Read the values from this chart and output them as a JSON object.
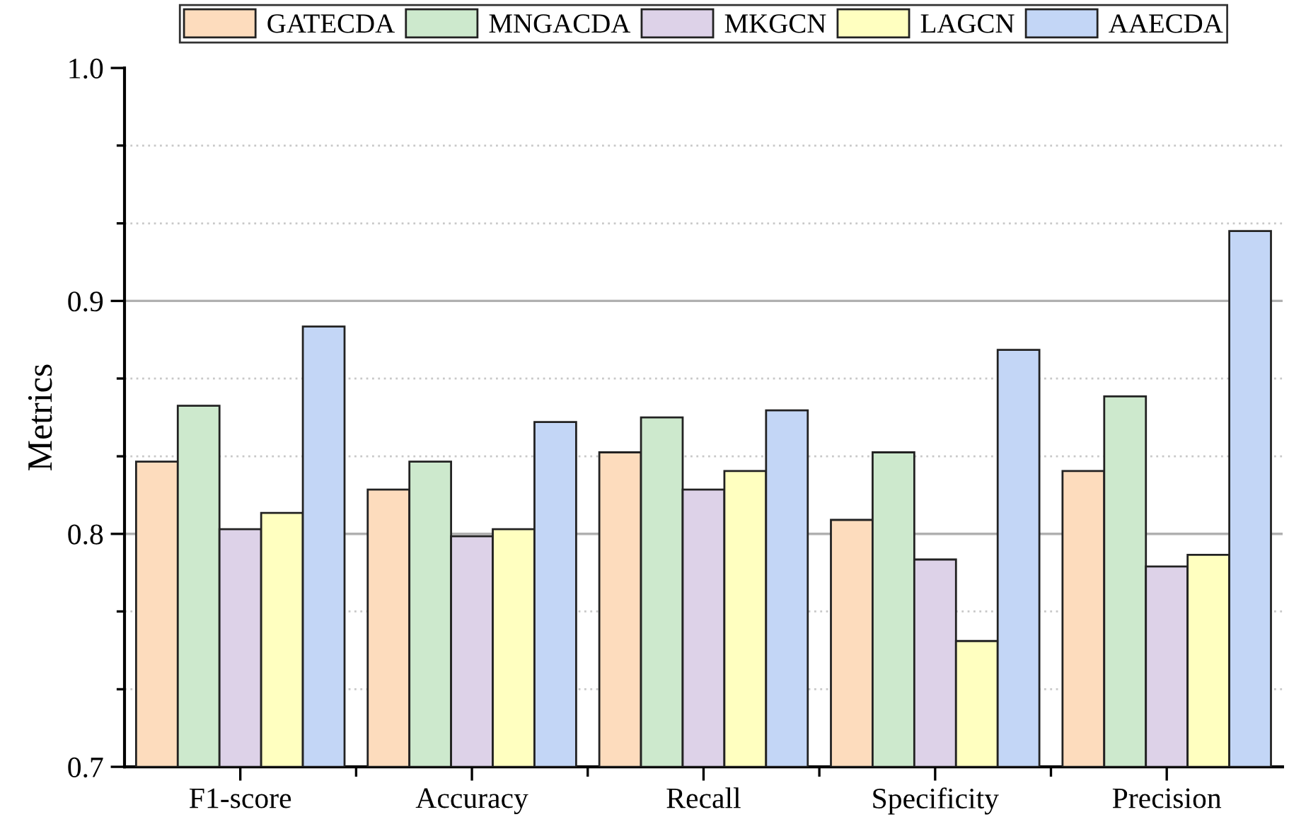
{
  "chart_data": {
    "type": "bar",
    "ylabel": "Metrics",
    "categories": [
      "F1-score",
      "Accuracy",
      "Recall",
      "Specificity",
      "Precision"
    ],
    "series": [
      {
        "name": "GATECDA",
        "color": "#fddcbd",
        "values": [
          0.831,
          0.819,
          0.835,
          0.806,
          0.827
        ]
      },
      {
        "name": "MNGACDA",
        "color": "#cde9cd",
        "values": [
          0.855,
          0.831,
          0.85,
          0.835,
          0.859
        ]
      },
      {
        "name": "MKGCN",
        "color": "#ddd2e8",
        "values": [
          0.802,
          0.799,
          0.819,
          0.789,
          0.786
        ]
      },
      {
        "name": "LAGCN",
        "color": "#ffffc0",
        "values": [
          0.809,
          0.802,
          0.827,
          0.754,
          0.791
        ]
      },
      {
        "name": "AAECDA",
        "color": "#c3d6f6",
        "values": [
          0.889,
          0.848,
          0.853,
          0.879,
          0.93
        ]
      }
    ],
    "ylim": [
      0.7,
      1.0
    ],
    "yticks": [
      0.7,
      {
        "value": 0.7333,
        "label": null
      },
      {
        "value": 0.7667,
        "label": null
      },
      0.8,
      {
        "value": 0.8333,
        "label": null
      },
      {
        "value": 0.8667,
        "label": null
      },
      0.9,
      {
        "value": 0.9333,
        "label": null
      },
      {
        "value": 0.9667,
        "label": null
      },
      {
        "value": 1,
        "label": "1.0"
      }
    ],
    "grid": "y",
    "legend": "top"
  }
}
